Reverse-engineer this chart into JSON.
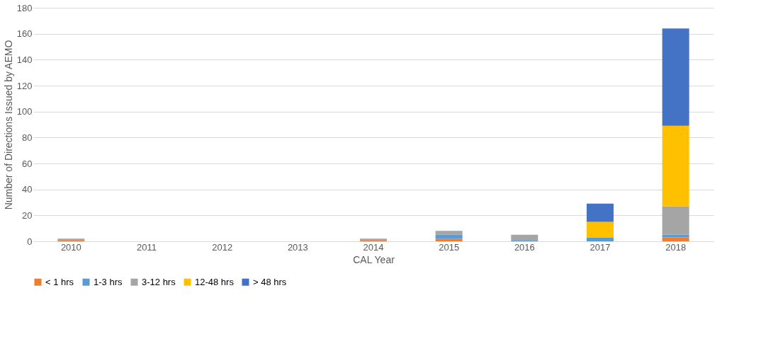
{
  "chart_data": {
    "type": "bar",
    "stacked": true,
    "xlabel": "CAL Year",
    "ylabel": "Number of Directions Issued by AEMO",
    "categories": [
      "2010",
      "2011",
      "2012",
      "2013",
      "2014",
      "2015",
      "2016",
      "2017",
      "2018"
    ],
    "series": [
      {
        "name": "< 1 hrs",
        "color": "#ed7d31",
        "values": [
          1,
          0,
          0,
          0,
          1,
          2,
          0,
          0,
          3
        ]
      },
      {
        "name": "1-3 hrs",
        "color": "#5b9bd5",
        "values": [
          0,
          0,
          0,
          0,
          0,
          3,
          1,
          3,
          2
        ]
      },
      {
        "name": "3-12 hrs",
        "color": "#a5a5a5",
        "values": [
          1,
          0,
          0,
          0,
          1,
          3,
          4,
          0,
          22
        ]
      },
      {
        "name": "12-48 hrs",
        "color": "#ffc000",
        "values": [
          0,
          0,
          0,
          0,
          0,
          0,
          0,
          12,
          62
        ]
      },
      {
        "name": "> 48 hrs",
        "color": "#4472c4",
        "values": [
          0,
          0,
          0,
          0,
          0,
          0,
          0,
          14,
          75
        ]
      }
    ],
    "ylim": [
      0,
      180
    ],
    "yticks": [
      0,
      20,
      40,
      60,
      80,
      100,
      120,
      140,
      160,
      180
    ],
    "grid": "y",
    "legend": "bottom"
  }
}
